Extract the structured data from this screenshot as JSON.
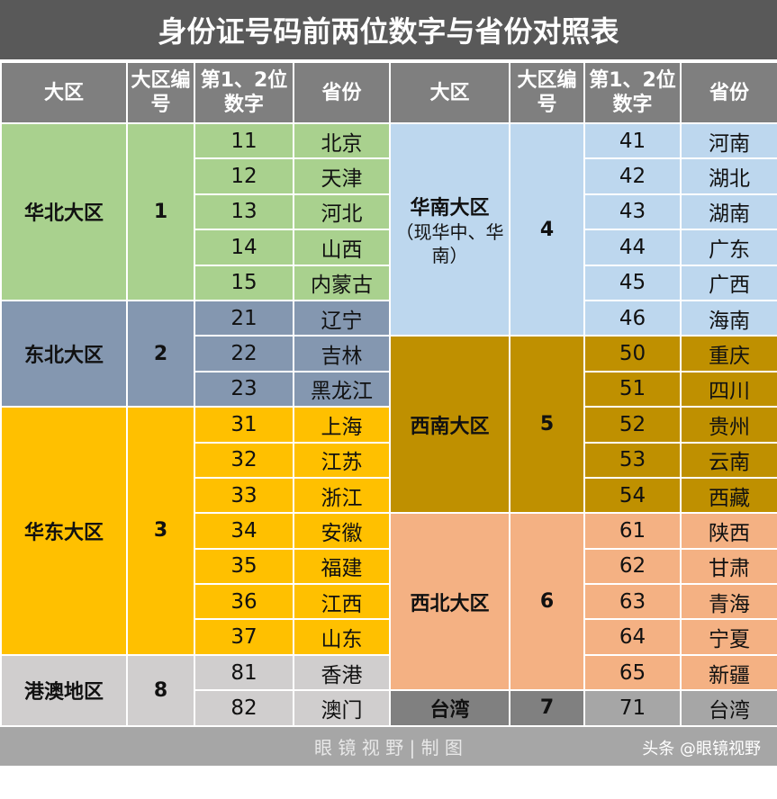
{
  "title": "身份证号码前两位数字与省份对照表",
  "headers": [
    "大区",
    "大区编号",
    "第1、2位数字",
    "省份",
    "大区",
    "大区编号",
    "第1、2位数字",
    "省份"
  ],
  "left_groups": [
    {
      "region": "华北大区",
      "code": 1,
      "color": "#a9d18e",
      "rows": [
        [
          11,
          "北京"
        ],
        [
          12,
          "天津"
        ],
        [
          13,
          "河北"
        ],
        [
          14,
          "山西"
        ],
        [
          15,
          "内蒙古"
        ]
      ]
    },
    {
      "region": "东北大区",
      "code": 2,
      "color": "#8497b0",
      "rows": [
        [
          21,
          "辽宁"
        ],
        [
          22,
          "吉林"
        ],
        [
          23,
          "黑龙江"
        ]
      ]
    },
    {
      "region": "华东大区",
      "code": 3,
      "color": "#ffc000",
      "rows": [
        [
          31,
          "上海"
        ],
        [
          32,
          "江苏"
        ],
        [
          33,
          "浙江"
        ],
        [
          34,
          "安徽"
        ],
        [
          35,
          "福建"
        ],
        [
          36,
          "江西"
        ],
        [
          37,
          "山东"
        ]
      ]
    },
    {
      "region": "港澳地区",
      "code": 8,
      "color": "#d0cece",
      "rows": [
        [
          81,
          "香港"
        ],
        [
          82,
          "澳门"
        ]
      ]
    }
  ],
  "right_groups": [
    {
      "region": "华南大区",
      "note": "（现华中、华南）",
      "code": 4,
      "color": "#bdd7ee",
      "rows": [
        [
          41,
          "河南"
        ],
        [
          42,
          "湖北"
        ],
        [
          43,
          "湖南"
        ],
        [
          44,
          "广东"
        ],
        [
          45,
          "广西"
        ],
        [
          46,
          "海南"
        ]
      ]
    },
    {
      "region": "西南大区",
      "code": 5,
      "color": "#bf9000",
      "rows": [
        [
          50,
          "重庆"
        ],
        [
          51,
          "四川"
        ],
        [
          52,
          "贵州"
        ],
        [
          53,
          "云南"
        ],
        [
          54,
          "西藏"
        ]
      ]
    },
    {
      "region": "西北大区",
      "code": 6,
      "color": "#f4b183",
      "rows": [
        [
          61,
          "陕西"
        ],
        [
          62,
          "甘肃"
        ],
        [
          63,
          "青海"
        ],
        [
          64,
          "宁夏"
        ],
        [
          65,
          "新疆"
        ]
      ]
    },
    {
      "region": "台湾",
      "code": 7,
      "color": "#808080",
      "row_color": "#a6a6a6",
      "rows": [
        [
          71,
          "台湾"
        ]
      ]
    }
  ],
  "footer": "眼 镜 视 野 | 制 图",
  "watermark": "头条 @眼镜视野"
}
